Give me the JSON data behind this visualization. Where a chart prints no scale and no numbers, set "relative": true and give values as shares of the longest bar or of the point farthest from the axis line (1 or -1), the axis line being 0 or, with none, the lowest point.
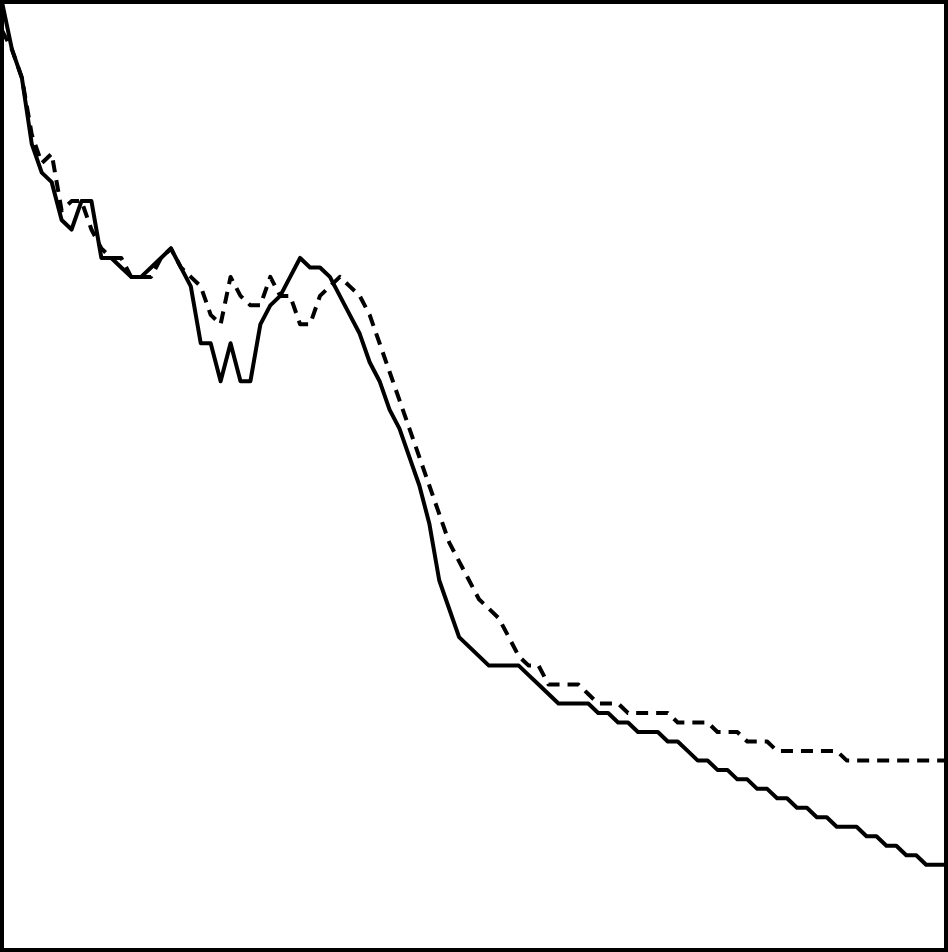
{
  "chart_data": {
    "type": "line",
    "relative": true,
    "legend": false,
    "grid": false,
    "marker": "none",
    "categories": [
      null,
      null,
      null,
      null,
      null,
      null,
      null,
      null,
      null,
      null,
      null,
      null,
      null,
      null,
      null,
      null,
      null,
      null,
      null,
      null,
      null,
      null,
      null,
      null,
      null,
      null,
      null,
      null,
      null,
      null,
      null,
      null,
      null,
      null,
      null,
      null,
      null,
      null,
      null,
      null,
      null,
      null,
      null,
      null,
      null,
      null,
      null,
      null,
      null,
      null,
      null,
      null,
      null,
      null,
      null,
      null,
      null,
      null,
      null,
      null,
      null,
      null,
      null,
      null,
      null,
      null,
      null,
      null,
      null,
      null,
      null,
      null,
      null,
      null,
      null,
      null,
      null,
      null,
      null,
      null,
      null,
      null,
      null,
      null,
      null,
      null,
      null,
      null,
      null,
      null,
      null,
      null,
      null,
      null,
      null,
      null
    ],
    "series": [
      {
        "color": "#000000",
        "line_style": "solid",
        "values": [
          1.0,
          0.95,
          0.92,
          0.85,
          0.82,
          0.81,
          0.77,
          0.76,
          0.79,
          0.79,
          0.73,
          0.73,
          0.72,
          0.71,
          0.71,
          0.72,
          0.73,
          0.74,
          0.72,
          0.7,
          0.64,
          0.64,
          0.6,
          0.64,
          0.6,
          0.6,
          0.66,
          0.68,
          0.69,
          0.71,
          0.73,
          0.72,
          0.72,
          0.71,
          0.69,
          0.67,
          0.65,
          0.62,
          0.6,
          0.57,
          0.55,
          0.52,
          0.49,
          0.45,
          0.39,
          0.36,
          0.33,
          0.32,
          0.31,
          0.3,
          0.3,
          0.3,
          0.3,
          0.29,
          0.28,
          0.27,
          0.26,
          0.26,
          0.26,
          0.26,
          0.25,
          0.25,
          0.24,
          0.24,
          0.23,
          0.23,
          0.23,
          0.22,
          0.22,
          0.21,
          0.2,
          0.2,
          0.19,
          0.19,
          0.18,
          0.18,
          0.17,
          0.17,
          0.16,
          0.16,
          0.15,
          0.15,
          0.14,
          0.14,
          0.13,
          0.13,
          0.13,
          0.12,
          0.12,
          0.11,
          0.11,
          0.1,
          0.1,
          0.09,
          0.09,
          0.09
        ]
      },
      {
        "color": "#000000",
        "line_style": "dashed",
        "values": [
          0.97,
          0.95,
          0.92,
          0.86,
          0.83,
          0.84,
          0.78,
          0.79,
          0.79,
          0.76,
          0.74,
          0.73,
          0.73,
          0.71,
          0.71,
          0.71,
          0.73,
          0.74,
          0.72,
          0.71,
          0.7,
          0.67,
          0.66,
          0.71,
          0.69,
          0.68,
          0.68,
          0.71,
          0.69,
          0.69,
          0.66,
          0.66,
          0.69,
          0.7,
          0.71,
          0.7,
          0.69,
          0.67,
          0.64,
          0.61,
          0.58,
          0.55,
          0.52,
          0.49,
          0.46,
          0.43,
          0.41,
          0.39,
          0.37,
          0.36,
          0.35,
          0.33,
          0.31,
          0.3,
          0.3,
          0.28,
          0.28,
          0.28,
          0.28,
          0.27,
          0.26,
          0.26,
          0.26,
          0.25,
          0.25,
          0.25,
          0.25,
          0.25,
          0.24,
          0.24,
          0.24,
          0.24,
          0.23,
          0.23,
          0.23,
          0.22,
          0.22,
          0.22,
          0.21,
          0.21,
          0.21,
          0.21,
          0.21,
          0.21,
          0.21,
          0.2,
          0.2,
          0.2,
          0.2,
          0.2,
          0.2,
          0.2,
          0.2,
          0.2,
          0.2,
          0.2
        ]
      }
    ]
  }
}
